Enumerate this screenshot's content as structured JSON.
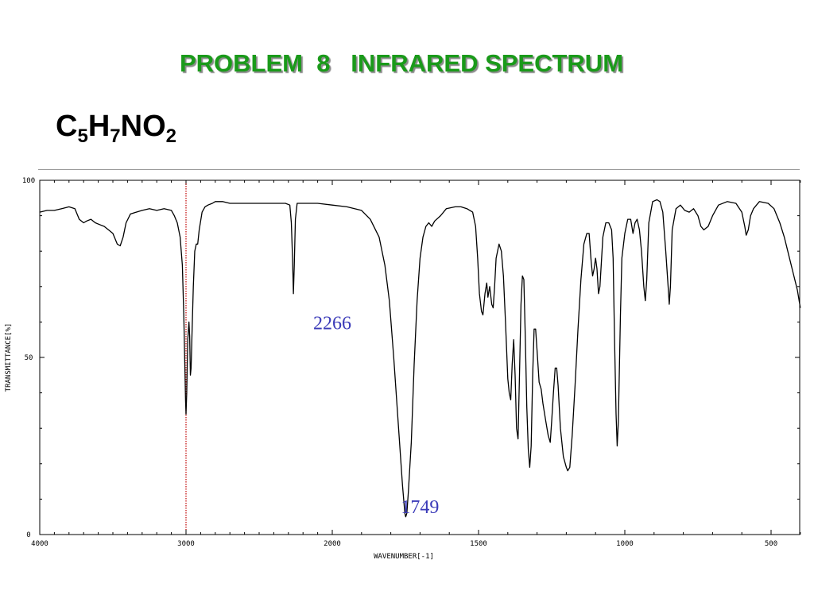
{
  "slide": {
    "title": "PROBLEM  8   INFRARED SPECTRUM",
    "formula": {
      "c": "C",
      "c_n": "5",
      "h": "H",
      "h_n": "7",
      "rest": "NO",
      "o_n": "2"
    }
  },
  "chart_data": {
    "type": "line",
    "xlabel": "WAVENUMBER[-1]",
    "ylabel": "TRANSMITTANCE[%]",
    "xlim": [
      4000,
      400
    ],
    "ylim": [
      0,
      100
    ],
    "x_ticks": [
      4000,
      3000,
      2000,
      1500,
      1000,
      500
    ],
    "x_tick_labels": [
      "4000",
      "3000",
      "2000",
      "1500",
      "1000",
      "500"
    ],
    "y_ticks": [
      0,
      50,
      100
    ],
    "y_tick_labels": [
      "0",
      "50",
      "100"
    ],
    "marker_line": {
      "x": 3000,
      "color": "#c00000"
    },
    "annotations": [
      {
        "text": "2266",
        "x": 2000,
        "y": 58
      },
      {
        "text": "1749",
        "x": 1700,
        "y": 6
      }
    ],
    "series": [
      {
        "color": "#000000",
        "points": [
          [
            4000,
            91
          ],
          [
            3950,
            91.5
          ],
          [
            3900,
            91.5
          ],
          [
            3850,
            92
          ],
          [
            3800,
            92.5
          ],
          [
            3760,
            92
          ],
          [
            3730,
            89
          ],
          [
            3700,
            88
          ],
          [
            3680,
            88.5
          ],
          [
            3650,
            89
          ],
          [
            3620,
            88
          ],
          [
            3590,
            87.5
          ],
          [
            3560,
            87
          ],
          [
            3530,
            86
          ],
          [
            3500,
            85
          ],
          [
            3470,
            82
          ],
          [
            3450,
            81.5
          ],
          [
            3430,
            84
          ],
          [
            3410,
            88
          ],
          [
            3380,
            90.5
          ],
          [
            3340,
            91
          ],
          [
            3300,
            91.5
          ],
          [
            3250,
            92
          ],
          [
            3200,
            91.5
          ],
          [
            3150,
            92
          ],
          [
            3100,
            91.5
          ],
          [
            3080,
            90
          ],
          [
            3060,
            88
          ],
          [
            3040,
            84
          ],
          [
            3025,
            76
          ],
          [
            3015,
            62
          ],
          [
            3008,
            48
          ],
          [
            3003,
            38
          ],
          [
            3000,
            34
          ],
          [
            2995,
            40
          ],
          [
            2988,
            55
          ],
          [
            2980,
            60
          ],
          [
            2975,
            56
          ],
          [
            2970,
            45
          ],
          [
            2965,
            47
          ],
          [
            2958,
            58
          ],
          [
            2950,
            70
          ],
          [
            2940,
            80
          ],
          [
            2930,
            82
          ],
          [
            2920,
            82
          ],
          [
            2910,
            86
          ],
          [
            2890,
            91
          ],
          [
            2870,
            92.5
          ],
          [
            2850,
            93
          ],
          [
            2820,
            93.5
          ],
          [
            2800,
            94
          ],
          [
            2750,
            94
          ],
          [
            2700,
            93.5
          ],
          [
            2650,
            93.5
          ],
          [
            2600,
            93.5
          ],
          [
            2500,
            93.5
          ],
          [
            2400,
            93.5
          ],
          [
            2320,
            93.5
          ],
          [
            2290,
            93
          ],
          [
            2280,
            88
          ],
          [
            2272,
            78
          ],
          [
            2266,
            68
          ],
          [
            2260,
            76
          ],
          [
            2252,
            89
          ],
          [
            2240,
            93.5
          ],
          [
            2200,
            93.5
          ],
          [
            2100,
            93.5
          ],
          [
            2000,
            93
          ],
          [
            1950,
            92.5
          ],
          [
            1900,
            91.5
          ],
          [
            1870,
            89
          ],
          [
            1840,
            84
          ],
          [
            1820,
            76
          ],
          [
            1805,
            66
          ],
          [
            1790,
            50
          ],
          [
            1775,
            32
          ],
          [
            1760,
            14
          ],
          [
            1752,
            6
          ],
          [
            1749,
            5
          ],
          [
            1745,
            6
          ],
          [
            1740,
            12
          ],
          [
            1730,
            26
          ],
          [
            1720,
            48
          ],
          [
            1710,
            66
          ],
          [
            1700,
            78
          ],
          [
            1690,
            84
          ],
          [
            1680,
            87
          ],
          [
            1670,
            88
          ],
          [
            1660,
            87
          ],
          [
            1650,
            88.5
          ],
          [
            1630,
            90
          ],
          [
            1610,
            92
          ],
          [
            1580,
            92.5
          ],
          [
            1560,
            92.5
          ],
          [
            1540,
            92
          ],
          [
            1520,
            91
          ],
          [
            1510,
            87
          ],
          [
            1503,
            78
          ],
          [
            1497,
            68
          ],
          [
            1490,
            63
          ],
          [
            1485,
            62
          ],
          [
            1478,
            68
          ],
          [
            1472,
            71
          ],
          [
            1468,
            67
          ],
          [
            1462,
            70
          ],
          [
            1455,
            65
          ],
          [
            1450,
            64
          ],
          [
            1445,
            70
          ],
          [
            1440,
            78
          ],
          [
            1430,
            82
          ],
          [
            1422,
            80
          ],
          [
            1415,
            73
          ],
          [
            1408,
            60
          ],
          [
            1400,
            44
          ],
          [
            1395,
            40
          ],
          [
            1390,
            38
          ],
          [
            1385,
            48
          ],
          [
            1380,
            55
          ],
          [
            1375,
            45
          ],
          [
            1370,
            30
          ],
          [
            1365,
            27
          ],
          [
            1360,
            45
          ],
          [
            1355,
            65
          ],
          [
            1350,
            73
          ],
          [
            1345,
            72
          ],
          [
            1340,
            55
          ],
          [
            1335,
            36
          ],
          [
            1330,
            24
          ],
          [
            1325,
            19
          ],
          [
            1320,
            25
          ],
          [
            1315,
            45
          ],
          [
            1310,
            58
          ],
          [
            1305,
            58
          ],
          [
            1300,
            52
          ],
          [
            1293,
            43
          ],
          [
            1286,
            41
          ],
          [
            1280,
            37
          ],
          [
            1270,
            32
          ],
          [
            1262,
            28
          ],
          [
            1255,
            26
          ],
          [
            1250,
            32
          ],
          [
            1244,
            40
          ],
          [
            1238,
            47
          ],
          [
            1233,
            47
          ],
          [
            1228,
            42
          ],
          [
            1220,
            30
          ],
          [
            1210,
            22
          ],
          [
            1200,
            19
          ],
          [
            1195,
            18
          ],
          [
            1188,
            19
          ],
          [
            1180,
            28
          ],
          [
            1170,
            42
          ],
          [
            1160,
            58
          ],
          [
            1150,
            72
          ],
          [
            1140,
            82
          ],
          [
            1130,
            85
          ],
          [
            1122,
            85
          ],
          [
            1115,
            77
          ],
          [
            1110,
            73
          ],
          [
            1105,
            75
          ],
          [
            1100,
            78
          ],
          [
            1095,
            75
          ],
          [
            1090,
            68
          ],
          [
            1085,
            70
          ],
          [
            1075,
            84
          ],
          [
            1065,
            88
          ],
          [
            1055,
            88
          ],
          [
            1045,
            86
          ],
          [
            1040,
            78
          ],
          [
            1035,
            55
          ],
          [
            1030,
            34
          ],
          [
            1026,
            25
          ],
          [
            1022,
            32
          ],
          [
            1015,
            62
          ],
          [
            1010,
            78
          ],
          [
            1000,
            85
          ],
          [
            990,
            89
          ],
          [
            980,
            89
          ],
          [
            972,
            85
          ],
          [
            965,
            88
          ],
          [
            958,
            89
          ],
          [
            950,
            86
          ],
          [
            943,
            80
          ],
          [
            935,
            70
          ],
          [
            930,
            66
          ],
          [
            925,
            72
          ],
          [
            918,
            88
          ],
          [
            905,
            94
          ],
          [
            890,
            94.5
          ],
          [
            880,
            94
          ],
          [
            870,
            91
          ],
          [
            860,
            80
          ],
          [
            852,
            70
          ],
          [
            848,
            65
          ],
          [
            844,
            70
          ],
          [
            838,
            86
          ],
          [
            825,
            92
          ],
          [
            810,
            93
          ],
          [
            795,
            91.5
          ],
          [
            780,
            91
          ],
          [
            765,
            92
          ],
          [
            750,
            90
          ],
          [
            740,
            87
          ],
          [
            730,
            86
          ],
          [
            715,
            87
          ],
          [
            700,
            90
          ],
          [
            680,
            93
          ],
          [
            650,
            94
          ],
          [
            620,
            93.5
          ],
          [
            600,
            91
          ],
          [
            590,
            87
          ],
          [
            585,
            84.5
          ],
          [
            578,
            86
          ],
          [
            570,
            90
          ],
          [
            560,
            92
          ],
          [
            540,
            94
          ],
          [
            510,
            93.5
          ],
          [
            490,
            92
          ],
          [
            470,
            88
          ],
          [
            455,
            84
          ],
          [
            440,
            79
          ],
          [
            425,
            74
          ],
          [
            410,
            69
          ],
          [
            400,
            64
          ]
        ]
      }
    ]
  }
}
